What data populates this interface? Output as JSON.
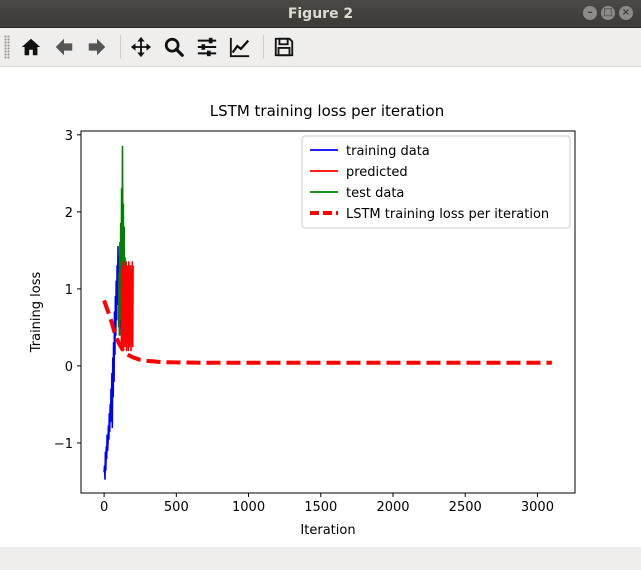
{
  "window": {
    "title": "Figure 2"
  },
  "toolbar": {
    "buttons": [
      {
        "name": "home",
        "icon": "home-icon"
      },
      {
        "name": "back",
        "icon": "arrow-left-icon"
      },
      {
        "name": "forward",
        "icon": "arrow-right-icon"
      },
      {
        "name": "pan",
        "icon": "move-icon"
      },
      {
        "name": "zoom",
        "icon": "magnifier-icon"
      },
      {
        "name": "configure-subplots",
        "icon": "sliders-icon"
      },
      {
        "name": "edit-axis",
        "icon": "chart-line-icon"
      },
      {
        "name": "save",
        "icon": "floppy-disk-icon"
      }
    ]
  },
  "chart_data": {
    "type": "line",
    "title": "LSTM training loss per iteration",
    "xlabel": "Iteration",
    "ylabel": "Training loss",
    "xlim": [
      -160,
      3260
    ],
    "ylim": [
      -1.65,
      3.05
    ],
    "xticks": [
      0,
      500,
      1000,
      1500,
      2000,
      2500,
      3000
    ],
    "yticks": [
      -1,
      0,
      1,
      2,
      3
    ],
    "ytick_labels": [
      "−1",
      "0",
      "1",
      "2",
      "3"
    ],
    "grid": false,
    "legend_position": "top-right",
    "series": [
      {
        "name": "training data",
        "color": "#0000ff",
        "x": [
          0,
          3,
          6,
          9,
          12,
          15,
          18,
          21,
          24,
          27,
          30,
          33,
          36,
          39,
          42,
          45,
          48,
          51,
          54,
          57,
          60,
          63,
          66,
          69,
          72,
          75,
          78,
          81,
          84,
          87,
          90,
          93,
          96,
          99,
          102,
          105,
          108,
          111,
          114,
          117,
          120
        ],
        "y": [
          -1.38,
          -1.3,
          -1.47,
          -1.12,
          -1.35,
          -1.05,
          -1.2,
          -0.9,
          -1.1,
          -1.0,
          -0.78,
          -0.95,
          -0.62,
          -0.85,
          -0.5,
          -0.72,
          -0.3,
          -0.55,
          -0.1,
          -0.8,
          0.1,
          -0.4,
          0.3,
          -0.2,
          0.7,
          0.15,
          0.9,
          0.4,
          1.1,
          0.6,
          1.3,
          0.8,
          1.55,
          1.0,
          1.4,
          0.5,
          1.3,
          0.6,
          1.2,
          0.4,
          0.9
        ]
      },
      {
        "name": "test data",
        "color": "#008000",
        "x": [
          100,
          103,
          106,
          109,
          112,
          115,
          118,
          121,
          124,
          127,
          130,
          133,
          136,
          139,
          142,
          145,
          148,
          151
        ],
        "y": [
          0.5,
          1.2,
          0.4,
          1.6,
          0.6,
          1.85,
          0.9,
          2.3,
          0.7,
          2.85,
          1.0,
          2.1,
          0.5,
          1.8,
          0.8,
          1.4,
          0.6,
          1.2
        ]
      },
      {
        "name": "predicted",
        "color": "#ff0000",
        "x": [
          120,
          123,
          126,
          129,
          132,
          135,
          138,
          141,
          144,
          147,
          150,
          153,
          156,
          159,
          162,
          165,
          168,
          171,
          174,
          177,
          180,
          183,
          186,
          189,
          192,
          195,
          198,
          201
        ],
        "y": [
          0.25,
          1.25,
          0.3,
          1.35,
          0.2,
          1.3,
          0.35,
          1.2,
          0.25,
          1.3,
          0.3,
          1.35,
          0.2,
          1.25,
          0.3,
          1.3,
          0.2,
          1.35,
          0.25,
          1.2,
          0.3,
          1.3,
          0.2,
          1.25,
          0.3,
          1.35,
          0.25,
          1.3
        ]
      },
      {
        "name": "LSTM training loss per iteration",
        "color": "#ff0000",
        "dashed": true,
        "x": [
          0,
          25,
          50,
          75,
          100,
          125,
          150,
          200,
          250,
          300,
          400,
          500,
          700,
          1000,
          1500,
          2000,
          2500,
          3000,
          3100
        ],
        "y": [
          0.85,
          0.72,
          0.58,
          0.42,
          0.3,
          0.22,
          0.16,
          0.11,
          0.08,
          0.065,
          0.05,
          0.045,
          0.04,
          0.04,
          0.04,
          0.04,
          0.04,
          0.04,
          0.04
        ]
      }
    ]
  }
}
